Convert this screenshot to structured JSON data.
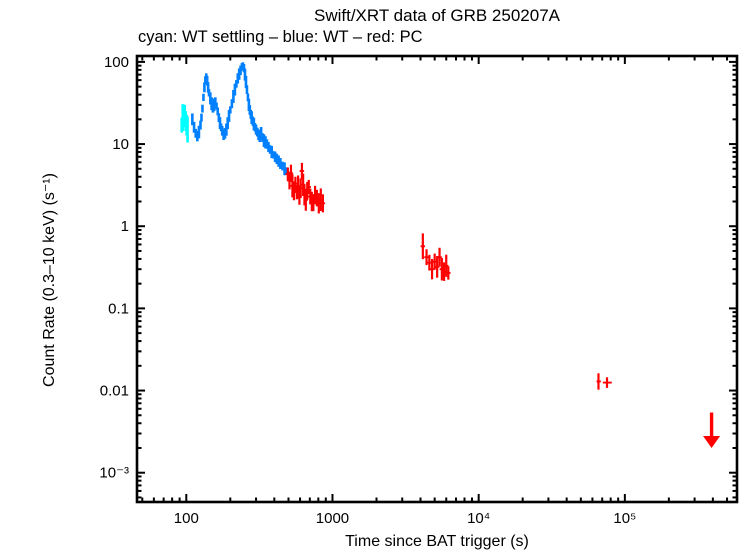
{
  "chart_data": {
    "type": "scatter",
    "title": "Swift/XRT data of GRB 250207A",
    "subtitle": "cyan: WT settling – blue: WT – red: PC",
    "xlabel": "Time since BAT trigger (s)",
    "ylabel": "Count Rate (0.3–10 keV) (s⁻¹)",
    "xscale": "log",
    "yscale": "log",
    "grid": false,
    "legend": "none",
    "xlim": [
      46,
      585000
    ],
    "ylim": [
      0.00044,
      118
    ],
    "xticks": [
      {
        "value": 100,
        "label": "100"
      },
      {
        "value": 1000,
        "label": "1000"
      },
      {
        "value": 10000,
        "label": "10⁴"
      },
      {
        "value": 100000,
        "label": "10⁵"
      }
    ],
    "yticks": [
      {
        "value": 100,
        "label": "100"
      },
      {
        "value": 10,
        "label": "10"
      },
      {
        "value": 1,
        "label": "1"
      },
      {
        "value": 0.1,
        "label": "0.1"
      },
      {
        "value": 0.01,
        "label": "0.01"
      },
      {
        "value": 0.001,
        "label": "10⁻³"
      }
    ],
    "point_format": "[t_seconds, count_rate, err_factor?, t_lo?, t_hi?]",
    "series": [
      {
        "name": "WT settling",
        "color": "#00ffff",
        "default_err": 1.35,
        "points": [
          [
            93,
            17
          ],
          [
            94.5,
            21
          ],
          [
            96,
            25,
            1.3
          ],
          [
            97.5,
            22
          ],
          [
            99,
            19
          ],
          [
            100.5,
            17
          ],
          [
            102,
            15,
            1.4
          ]
        ]
      },
      {
        "name": "WT",
        "color": "#0080ff",
        "default_err": 1.15,
        "points": [
          [
            110,
            20
          ],
          [
            113,
            16
          ],
          [
            116,
            13.5
          ],
          [
            119,
            12.5,
            1.2
          ],
          [
            122,
            14
          ],
          [
            125,
            17
          ],
          [
            127,
            21
          ],
          [
            129,
            27
          ],
          [
            131,
            37
          ],
          [
            133,
            49
          ],
          [
            135,
            60,
            1.12
          ],
          [
            137,
            67,
            1.12
          ],
          [
            139,
            59
          ],
          [
            141,
            49
          ],
          [
            143,
            42
          ],
          [
            146,
            36
          ],
          [
            149,
            31
          ],
          [
            152,
            28
          ],
          [
            155,
            30
          ],
          [
            158,
            33
          ],
          [
            161,
            29
          ],
          [
            164,
            25
          ],
          [
            167,
            21
          ],
          [
            170,
            18
          ],
          [
            173,
            16
          ],
          [
            176,
            14.5
          ],
          [
            180,
            13,
            1.2
          ],
          [
            184,
            13.5
          ],
          [
            188,
            15
          ],
          [
            192,
            18
          ],
          [
            196,
            22
          ],
          [
            200,
            26
          ],
          [
            205,
            31
          ],
          [
            210,
            38
          ],
          [
            215,
            46
          ],
          [
            220,
            54
          ],
          [
            225,
            63
          ],
          [
            230,
            71
          ],
          [
            235,
            79
          ],
          [
            240,
            87,
            1.1
          ],
          [
            244,
            90,
            1.1
          ],
          [
            248,
            84,
            1.1
          ],
          [
            252,
            70
          ],
          [
            256,
            57
          ],
          [
            260,
            46
          ],
          [
            264,
            37
          ],
          [
            268,
            30
          ],
          [
            272,
            26
          ],
          [
            276,
            23
          ],
          [
            280,
            21
          ],
          [
            285,
            19
          ],
          [
            290,
            17.5
          ],
          [
            295,
            16
          ],
          [
            300,
            15
          ],
          [
            306,
            14
          ],
          [
            312,
            13
          ],
          [
            318,
            12.5
          ],
          [
            325,
            13.5
          ],
          [
            332,
            12
          ],
          [
            340,
            11
          ],
          [
            348,
            10.5
          ],
          [
            356,
            10
          ],
          [
            365,
            9.2
          ],
          [
            374,
            8.6
          ],
          [
            384,
            8
          ],
          [
            394,
            7.4
          ],
          [
            405,
            7
          ],
          [
            416,
            6.6
          ],
          [
            428,
            6.2
          ],
          [
            440,
            5.8
          ],
          [
            455,
            5.4
          ],
          [
            470,
            5
          ],
          [
            485,
            4.7
          ]
        ]
      },
      {
        "name": "PC",
        "color": "#ff0000",
        "default_err": 1.3,
        "points": [
          [
            495,
            4.3
          ],
          [
            508,
            3.6
          ],
          [
            520,
            4.4
          ],
          [
            532,
            3.1
          ],
          [
            545,
            2.7
          ],
          [
            558,
            3.3
          ],
          [
            570,
            2.6
          ],
          [
            582,
            3.0
          ],
          [
            594,
            2.4
          ],
          [
            606,
            2.9
          ],
          [
            618,
            4.7,
            1.25
          ],
          [
            630,
            3.2
          ],
          [
            643,
            2.4
          ],
          [
            657,
            2.1
          ],
          [
            672,
            2.7
          ],
          [
            688,
            3.0
          ],
          [
            705,
            2.3
          ],
          [
            722,
            2.0
          ],
          [
            740,
            1.9
          ],
          [
            760,
            2.4
          ],
          [
            782,
            2.2
          ],
          [
            806,
            1.9
          ],
          [
            832,
            2.1
          ],
          [
            860,
            1.9
          ],
          [
            4150,
            0.57,
            1.5
          ],
          [
            4400,
            0.42
          ],
          [
            4600,
            0.36
          ],
          [
            4800,
            0.3
          ],
          [
            5000,
            0.37
          ],
          [
            5200,
            0.32
          ],
          [
            5400,
            0.42,
            1.25
          ],
          [
            5600,
            0.3
          ],
          [
            5800,
            0.28
          ],
          [
            6000,
            0.33
          ],
          [
            6200,
            0.27
          ],
          [
            66000,
            0.0129,
            1.3,
            64000,
            68500
          ],
          [
            75500,
            0.0125,
            1.18,
            70700,
            81400
          ]
        ]
      }
    ],
    "upper_limits": [
      {
        "series": "PC",
        "color": "#ff0000",
        "t": 392000,
        "rate": 0.0054,
        "arrow_tip_rate": 0.002
      }
    ],
    "colors": {
      "wt_settling": "#00ffff",
      "wt": "#0080ff",
      "pc": "#ff0000",
      "axis": "#000000",
      "background": "#ffffff"
    }
  }
}
